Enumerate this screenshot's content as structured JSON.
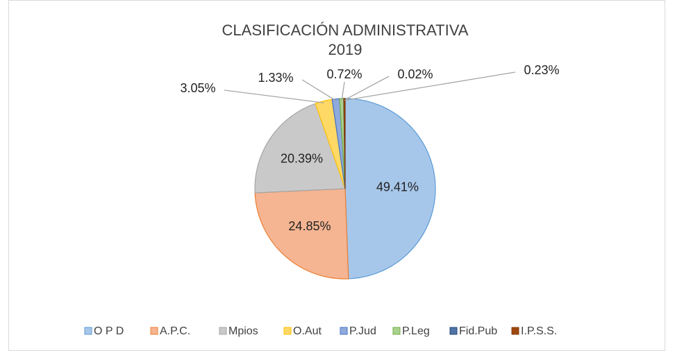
{
  "chart_data": {
    "type": "pie",
    "title": "CLASIFICACIÓN ADMINISTRATIVA",
    "subtitle": "2019",
    "categories": [
      "O P D",
      "A.P.C.",
      "Mpios",
      "O.Aut",
      "P.Jud",
      "P.Leg",
      "Fid.Pub",
      "I.P.S.S."
    ],
    "values": [
      49.41,
      24.85,
      20.39,
      3.05,
      1.33,
      0.72,
      0.02,
      0.23
    ],
    "value_labels": [
      "49.41%",
      "24.85%",
      "20.39%",
      "3.05%",
      "1.33%",
      "0.72%",
      "0.02%",
      "0.23%"
    ],
    "colors": [
      "#a7c7ea",
      "#f5b592",
      "#c9c9c9",
      "#ffd966",
      "#8faadc",
      "#a9d18e",
      "#4f74a8",
      "#9e480e"
    ],
    "legend": "bottom"
  }
}
